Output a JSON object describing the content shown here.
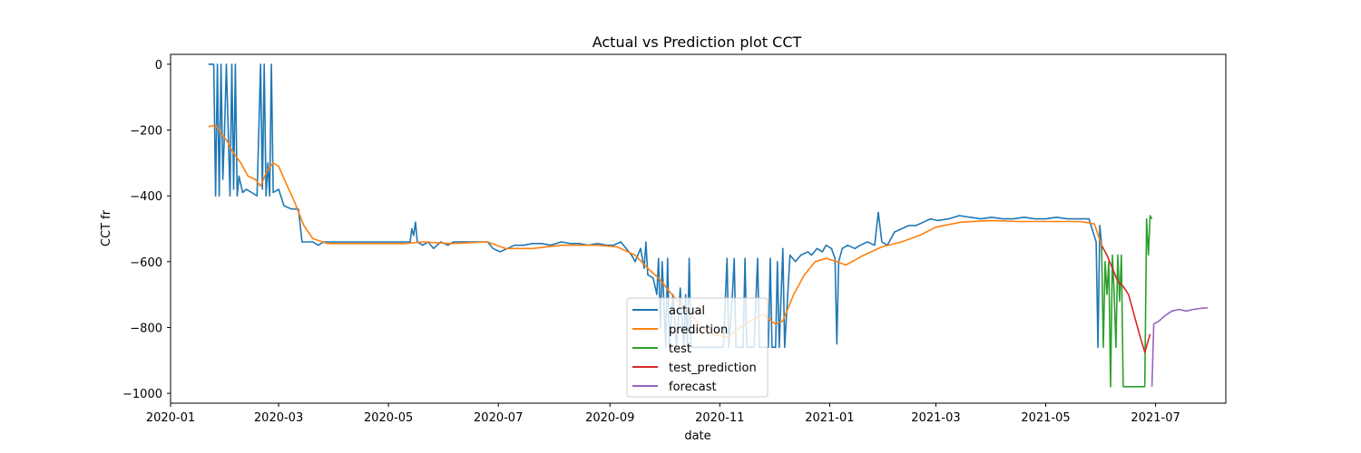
{
  "chart_data": {
    "type": "line",
    "title": "Actual vs Prediction plot CCT",
    "xlabel": "date",
    "ylabel": "CCT fr",
    "xlim": [
      "2020-01-01",
      "2021-08-09"
    ],
    "ylim": [
      -1030,
      30
    ],
    "x_ticks": [
      "2020-01-01",
      "2020-03-01",
      "2020-05-01",
      "2020-07-01",
      "2020-09-01",
      "2020-11-01",
      "2021-01-01",
      "2021-03-01",
      "2021-05-01",
      "2021-07-01"
    ],
    "x_tick_labels": [
      "2020-01",
      "2020-03",
      "2020-05",
      "2020-07",
      "2020-09",
      "2020-11",
      "2021-01",
      "2021-03",
      "2021-05",
      "2021-07"
    ],
    "y_ticks": [
      0,
      -200,
      -400,
      -600,
      -800,
      -1000
    ],
    "y_tick_labels": [
      "0",
      "−200",
      "−400",
      "−600",
      "−800",
      "−1000"
    ],
    "grid": false,
    "legend_position": "lower-center",
    "series": [
      {
        "name": "actual",
        "color": "#1f77b4",
        "points": [
          [
            "2020-01-22",
            0
          ],
          [
            "2020-01-25",
            0
          ],
          [
            "2020-01-26",
            -400
          ],
          [
            "2020-01-27",
            0
          ],
          [
            "2020-01-28",
            -400
          ],
          [
            "2020-01-29",
            0
          ],
          [
            "2020-01-30",
            -350
          ],
          [
            "2020-01-31",
            -200
          ],
          [
            "2020-02-01",
            0
          ],
          [
            "2020-02-03",
            -400
          ],
          [
            "2020-02-04",
            0
          ],
          [
            "2020-02-05",
            -380
          ],
          [
            "2020-02-06",
            0
          ],
          [
            "2020-02-07",
            -400
          ],
          [
            "2020-02-08",
            -340
          ],
          [
            "2020-02-10",
            -390
          ],
          [
            "2020-02-12",
            -380
          ],
          [
            "2020-02-15",
            -390
          ],
          [
            "2020-02-18",
            -400
          ],
          [
            "2020-02-20",
            0
          ],
          [
            "2020-02-21",
            -380
          ],
          [
            "2020-02-22",
            0
          ],
          [
            "2020-02-23",
            -400
          ],
          [
            "2020-02-24",
            -300
          ],
          [
            "2020-02-25",
            -400
          ],
          [
            "2020-02-26",
            0
          ],
          [
            "2020-02-27",
            -390
          ],
          [
            "2020-03-01",
            -380
          ],
          [
            "2020-03-04",
            -430
          ],
          [
            "2020-03-08",
            -440
          ],
          [
            "2020-03-12",
            -440
          ],
          [
            "2020-03-14",
            -540
          ],
          [
            "2020-03-20",
            -540
          ],
          [
            "2020-03-23",
            -550
          ],
          [
            "2020-03-26",
            -540
          ],
          [
            "2020-04-10",
            -540
          ],
          [
            "2020-05-01",
            -540
          ],
          [
            "2020-05-13",
            -540
          ],
          [
            "2020-05-14",
            -500
          ],
          [
            "2020-05-15",
            -520
          ],
          [
            "2020-05-16",
            -480
          ],
          [
            "2020-05-17",
            -540
          ],
          [
            "2020-05-20",
            -550
          ],
          [
            "2020-05-23",
            -540
          ],
          [
            "2020-05-26",
            -560
          ],
          [
            "2020-05-30",
            -540
          ],
          [
            "2020-06-03",
            -550
          ],
          [
            "2020-06-06",
            -540
          ],
          [
            "2020-06-25",
            -540
          ],
          [
            "2020-06-28",
            -560
          ],
          [
            "2020-07-02",
            -570
          ],
          [
            "2020-07-06",
            -560
          ],
          [
            "2020-07-10",
            -550
          ],
          [
            "2020-07-15",
            -550
          ],
          [
            "2020-07-20",
            -545
          ],
          [
            "2020-07-25",
            -545
          ],
          [
            "2020-07-30",
            -550
          ],
          [
            "2020-08-05",
            -540
          ],
          [
            "2020-08-10",
            -545
          ],
          [
            "2020-08-15",
            -545
          ],
          [
            "2020-08-20",
            -550
          ],
          [
            "2020-08-25",
            -545
          ],
          [
            "2020-08-30",
            -550
          ],
          [
            "2020-09-03",
            -550
          ],
          [
            "2020-09-07",
            -540
          ],
          [
            "2020-09-10",
            -560
          ],
          [
            "2020-09-13",
            -580
          ],
          [
            "2020-09-15",
            -600
          ],
          [
            "2020-09-18",
            -560
          ],
          [
            "2020-09-20",
            -620
          ],
          [
            "2020-09-21",
            -540
          ],
          [
            "2020-09-22",
            -640
          ],
          [
            "2020-09-25",
            -650
          ],
          [
            "2020-09-27",
            -700
          ],
          [
            "2020-09-28",
            -590
          ],
          [
            "2020-09-29",
            -800
          ],
          [
            "2020-09-30",
            -600
          ],
          [
            "2020-10-02",
            -860
          ],
          [
            "2020-10-03",
            -590
          ],
          [
            "2020-10-04",
            -860
          ],
          [
            "2020-10-06",
            -700
          ],
          [
            "2020-10-08",
            -860
          ],
          [
            "2020-10-10",
            -680
          ],
          [
            "2020-10-12",
            -860
          ],
          [
            "2020-10-13",
            -700
          ],
          [
            "2020-10-14",
            -860
          ],
          [
            "2020-10-15",
            -590
          ],
          [
            "2020-10-16",
            -860
          ],
          [
            "2020-10-20",
            -860
          ],
          [
            "2020-10-25",
            -860
          ],
          [
            "2020-10-30",
            -860
          ],
          [
            "2020-11-03",
            -860
          ],
          [
            "2020-11-05",
            -590
          ],
          [
            "2020-11-06",
            -860
          ],
          [
            "2020-11-08",
            -700
          ],
          [
            "2020-11-09",
            -590
          ],
          [
            "2020-11-10",
            -860
          ],
          [
            "2020-11-14",
            -860
          ],
          [
            "2020-11-15",
            -590
          ],
          [
            "2020-11-16",
            -860
          ],
          [
            "2020-11-20",
            -860
          ],
          [
            "2020-11-22",
            -590
          ],
          [
            "2020-11-23",
            -860
          ],
          [
            "2020-11-28",
            -860
          ],
          [
            "2020-11-29",
            -590
          ],
          [
            "2020-11-30",
            -860
          ],
          [
            "2020-12-02",
            -860
          ],
          [
            "2020-12-03",
            -600
          ],
          [
            "2020-12-04",
            -860
          ],
          [
            "2020-12-06",
            -560
          ],
          [
            "2020-12-07",
            -860
          ],
          [
            "2020-12-10",
            -580
          ],
          [
            "2020-12-13",
            -600
          ],
          [
            "2020-12-16",
            -580
          ],
          [
            "2020-12-20",
            -570
          ],
          [
            "2020-12-22",
            -580
          ],
          [
            "2020-12-25",
            -560
          ],
          [
            "2020-12-28",
            -570
          ],
          [
            "2020-12-30",
            -550
          ],
          [
            "2021-01-02",
            -560
          ],
          [
            "2021-01-04",
            -590
          ],
          [
            "2021-01-05",
            -850
          ],
          [
            "2021-01-06",
            -600
          ],
          [
            "2021-01-08",
            -560
          ],
          [
            "2021-01-11",
            -550
          ],
          [
            "2021-01-15",
            -560
          ],
          [
            "2021-01-18",
            -550
          ],
          [
            "2021-01-22",
            -540
          ],
          [
            "2021-01-26",
            -550
          ],
          [
            "2021-01-28",
            -450
          ],
          [
            "2021-01-30",
            -540
          ],
          [
            "2021-02-02",
            -550
          ],
          [
            "2021-02-06",
            -510
          ],
          [
            "2021-02-10",
            -500
          ],
          [
            "2021-02-14",
            -490
          ],
          [
            "2021-02-18",
            -490
          ],
          [
            "2021-02-22",
            -480
          ],
          [
            "2021-02-26",
            -470
          ],
          [
            "2021-03-02",
            -475
          ],
          [
            "2021-03-08",
            -470
          ],
          [
            "2021-03-14",
            -460
          ],
          [
            "2021-03-20",
            -465
          ],
          [
            "2021-03-26",
            -470
          ],
          [
            "2021-04-01",
            -465
          ],
          [
            "2021-04-07",
            -470
          ],
          [
            "2021-04-13",
            -470
          ],
          [
            "2021-04-19",
            -465
          ],
          [
            "2021-04-25",
            -470
          ],
          [
            "2021-05-01",
            -470
          ],
          [
            "2021-05-07",
            -465
          ],
          [
            "2021-05-13",
            -470
          ],
          [
            "2021-05-19",
            -470
          ],
          [
            "2021-05-25",
            -470
          ],
          [
            "2021-05-29",
            -540
          ],
          [
            "2021-05-30",
            -860
          ],
          [
            "2021-05-31",
            -490
          ],
          [
            "2021-06-01",
            -550
          ]
        ]
      },
      {
        "name": "prediction",
        "color": "#ff7f0e",
        "points": [
          [
            "2020-01-22",
            -190
          ],
          [
            "2020-01-26",
            -185
          ],
          [
            "2020-01-29",
            -210
          ],
          [
            "2020-02-01",
            -230
          ],
          [
            "2020-02-05",
            -270
          ],
          [
            "2020-02-09",
            -300
          ],
          [
            "2020-02-13",
            -340
          ],
          [
            "2020-02-17",
            -350
          ],
          [
            "2020-02-20",
            -370
          ],
          [
            "2020-02-24",
            -320
          ],
          [
            "2020-02-27",
            -300
          ],
          [
            "2020-03-01",
            -310
          ],
          [
            "2020-03-05",
            -360
          ],
          [
            "2020-03-10",
            -420
          ],
          [
            "2020-03-15",
            -490
          ],
          [
            "2020-03-20",
            -530
          ],
          [
            "2020-03-28",
            -545
          ],
          [
            "2020-04-15",
            -545
          ],
          [
            "2020-05-10",
            -545
          ],
          [
            "2020-05-20",
            -540
          ],
          [
            "2020-06-05",
            -545
          ],
          [
            "2020-06-25",
            -540
          ],
          [
            "2020-07-05",
            -560
          ],
          [
            "2020-07-20",
            -560
          ],
          [
            "2020-08-05",
            -550
          ],
          [
            "2020-08-25",
            -550
          ],
          [
            "2020-09-05",
            -555
          ],
          [
            "2020-09-15",
            -580
          ],
          [
            "2020-09-22",
            -620
          ],
          [
            "2020-09-28",
            -650
          ],
          [
            "2020-10-04",
            -690
          ],
          [
            "2020-10-10",
            -730
          ],
          [
            "2020-10-16",
            -760
          ],
          [
            "2020-10-22",
            -800
          ],
          [
            "2020-10-28",
            -820
          ],
          [
            "2020-11-05",
            -830
          ],
          [
            "2020-11-15",
            -790
          ],
          [
            "2020-11-25",
            -760
          ],
          [
            "2020-12-02",
            -790
          ],
          [
            "2020-12-06",
            -780
          ],
          [
            "2020-12-12",
            -700
          ],
          [
            "2020-12-18",
            -640
          ],
          [
            "2020-12-24",
            -600
          ],
          [
            "2020-12-30",
            -590
          ],
          [
            "2021-01-05",
            -600
          ],
          [
            "2021-01-10",
            -610
          ],
          [
            "2021-01-20",
            -580
          ],
          [
            "2021-01-30",
            -555
          ],
          [
            "2021-02-10",
            -540
          ],
          [
            "2021-02-20",
            -520
          ],
          [
            "2021-03-01",
            -495
          ],
          [
            "2021-03-15",
            -480
          ],
          [
            "2021-04-01",
            -475
          ],
          [
            "2021-04-15",
            -478
          ],
          [
            "2021-05-01",
            -478
          ],
          [
            "2021-05-20",
            -478
          ],
          [
            "2021-05-28",
            -485
          ],
          [
            "2021-06-01",
            -550
          ]
        ]
      },
      {
        "name": "test",
        "color": "#2ca02c",
        "points": [
          [
            "2021-06-01",
            -550
          ],
          [
            "2021-06-02",
            -860
          ],
          [
            "2021-06-03",
            -600
          ],
          [
            "2021-06-04",
            -700
          ],
          [
            "2021-06-05",
            -600
          ],
          [
            "2021-06-06",
            -980
          ],
          [
            "2021-06-07",
            -580
          ],
          [
            "2021-06-08",
            -700
          ],
          [
            "2021-06-09",
            -860
          ],
          [
            "2021-06-10",
            -580
          ],
          [
            "2021-06-11",
            -720
          ],
          [
            "2021-06-12",
            -580
          ],
          [
            "2021-06-13",
            -980
          ],
          [
            "2021-06-21",
            -980
          ],
          [
            "2021-06-25",
            -980
          ],
          [
            "2021-06-26",
            -470
          ],
          [
            "2021-06-27",
            -580
          ],
          [
            "2021-06-28",
            -460
          ],
          [
            "2021-06-29",
            -470
          ]
        ]
      },
      {
        "name": "test_prediction",
        "color": "#d62728",
        "points": [
          [
            "2021-06-01",
            -550
          ],
          [
            "2021-06-04",
            -580
          ],
          [
            "2021-06-07",
            -620
          ],
          [
            "2021-06-10",
            -660
          ],
          [
            "2021-06-13",
            -675
          ],
          [
            "2021-06-16",
            -700
          ],
          [
            "2021-06-19",
            -760
          ],
          [
            "2021-06-22",
            -820
          ],
          [
            "2021-06-25",
            -875
          ],
          [
            "2021-06-28",
            -820
          ]
        ]
      },
      {
        "name": "forecast",
        "color": "#9467bd",
        "points": [
          [
            "2021-06-29",
            -980
          ],
          [
            "2021-06-30",
            -790
          ],
          [
            "2021-07-03",
            -780
          ],
          [
            "2021-07-06",
            -765
          ],
          [
            "2021-07-10",
            -750
          ],
          [
            "2021-07-14",
            -745
          ],
          [
            "2021-07-18",
            -750
          ],
          [
            "2021-07-22",
            -745
          ],
          [
            "2021-07-26",
            -742
          ],
          [
            "2021-07-30",
            -740
          ]
        ]
      }
    ]
  }
}
